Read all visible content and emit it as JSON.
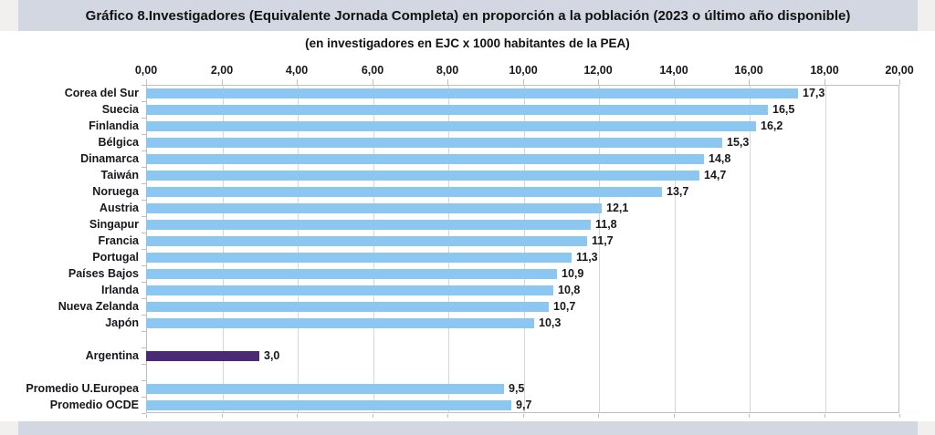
{
  "title": "Gráfico 8.Investigadores (Equivalente Jornada Completa) en proporción a la población (2023 o último año disponible)",
  "subtitle": "(en investigadores en EJC x 1000 habitantes de la PEA)",
  "colors": {
    "bar_default": "#8CC7F2",
    "bar_highlight": "#4A2A75",
    "title_band_bg": "#D3D7E2",
    "page_margin_bg": "#F2F0EE",
    "plot_border": "#BFBFBF",
    "gridline": "#D6D6D6",
    "text": "#17171C"
  },
  "chart_data": {
    "type": "bar",
    "orientation": "horizontal",
    "title": "Gráfico 8.Investigadores (Equivalente Jornada Completa) en proporción a la población (2023 o último año disponible)",
    "subtitle": "(en investigadores en EJC x 1000 habitantes de la PEA)",
    "legend": "none",
    "gridlines": true,
    "x_axis": {
      "min": 0,
      "max": 20,
      "tick_step": 2,
      "tick_labels": [
        "0,00",
        "2,00",
        "4,00",
        "6,00",
        "8,00",
        "10,00",
        "12,00",
        "14,00",
        "16,00",
        "18,00",
        "20,00"
      ],
      "position": "top"
    },
    "categories": [
      "Corea del Sur",
      "Suecia",
      "Finlandia",
      "Bélgica",
      "Dinamarca",
      "Taiwán",
      "Noruega",
      "Austria",
      "Singapur",
      "Francia",
      "Portugal",
      "Países Bajos",
      "Irlanda",
      "Nueva Zelanda",
      "Japón",
      "Argentina",
      "Promedio U.Europea",
      "Promedio OCDE"
    ],
    "values": [
      17.3,
      16.5,
      16.2,
      15.3,
      14.8,
      14.7,
      13.7,
      12.1,
      11.8,
      11.7,
      11.3,
      10.9,
      10.8,
      10.7,
      10.3,
      3.0,
      9.5,
      9.7
    ],
    "highlight_category": "Argentina",
    "rows": [
      {
        "label": "Corea del Sur",
        "value": 17.3,
        "display": "17,3",
        "highlight": false,
        "gap_before": false
      },
      {
        "label": "Suecia",
        "value": 16.5,
        "display": "16,5",
        "highlight": false,
        "gap_before": false
      },
      {
        "label": "Finlandia",
        "value": 16.2,
        "display": "16,2",
        "highlight": false,
        "gap_before": false
      },
      {
        "label": "Bélgica",
        "value": 15.3,
        "display": "15,3",
        "highlight": false,
        "gap_before": false
      },
      {
        "label": "Dinamarca",
        "value": 14.8,
        "display": "14,8",
        "highlight": false,
        "gap_before": false
      },
      {
        "label": "Taiwán",
        "value": 14.7,
        "display": "14,7",
        "highlight": false,
        "gap_before": false
      },
      {
        "label": "Noruega",
        "value": 13.7,
        "display": "13,7",
        "highlight": false,
        "gap_before": false
      },
      {
        "label": "Austria",
        "value": 12.1,
        "display": "12,1",
        "highlight": false,
        "gap_before": false
      },
      {
        "label": "Singapur",
        "value": 11.8,
        "display": "11,8",
        "highlight": false,
        "gap_before": false
      },
      {
        "label": "Francia",
        "value": 11.7,
        "display": "11,7",
        "highlight": false,
        "gap_before": false
      },
      {
        "label": "Portugal",
        "value": 11.3,
        "display": "11,3",
        "highlight": false,
        "gap_before": false
      },
      {
        "label": "Países Bajos",
        "value": 10.9,
        "display": "10,9",
        "highlight": false,
        "gap_before": false
      },
      {
        "label": "Irlanda",
        "value": 10.8,
        "display": "10,8",
        "highlight": false,
        "gap_before": false
      },
      {
        "label": "Nueva Zelanda",
        "value": 10.7,
        "display": "10,7",
        "highlight": false,
        "gap_before": false
      },
      {
        "label": "Japón",
        "value": 10.3,
        "display": "10,3",
        "highlight": false,
        "gap_before": false
      },
      {
        "label": "Argentina",
        "value": 3.0,
        "display": "3,0",
        "highlight": true,
        "gap_before": true
      },
      {
        "label": "Promedio U.Europea",
        "value": 9.5,
        "display": "9,5",
        "highlight": false,
        "gap_before": true
      },
      {
        "label": "Promedio OCDE",
        "value": 9.7,
        "display": "9,7",
        "highlight": false,
        "gap_before": false
      }
    ]
  }
}
